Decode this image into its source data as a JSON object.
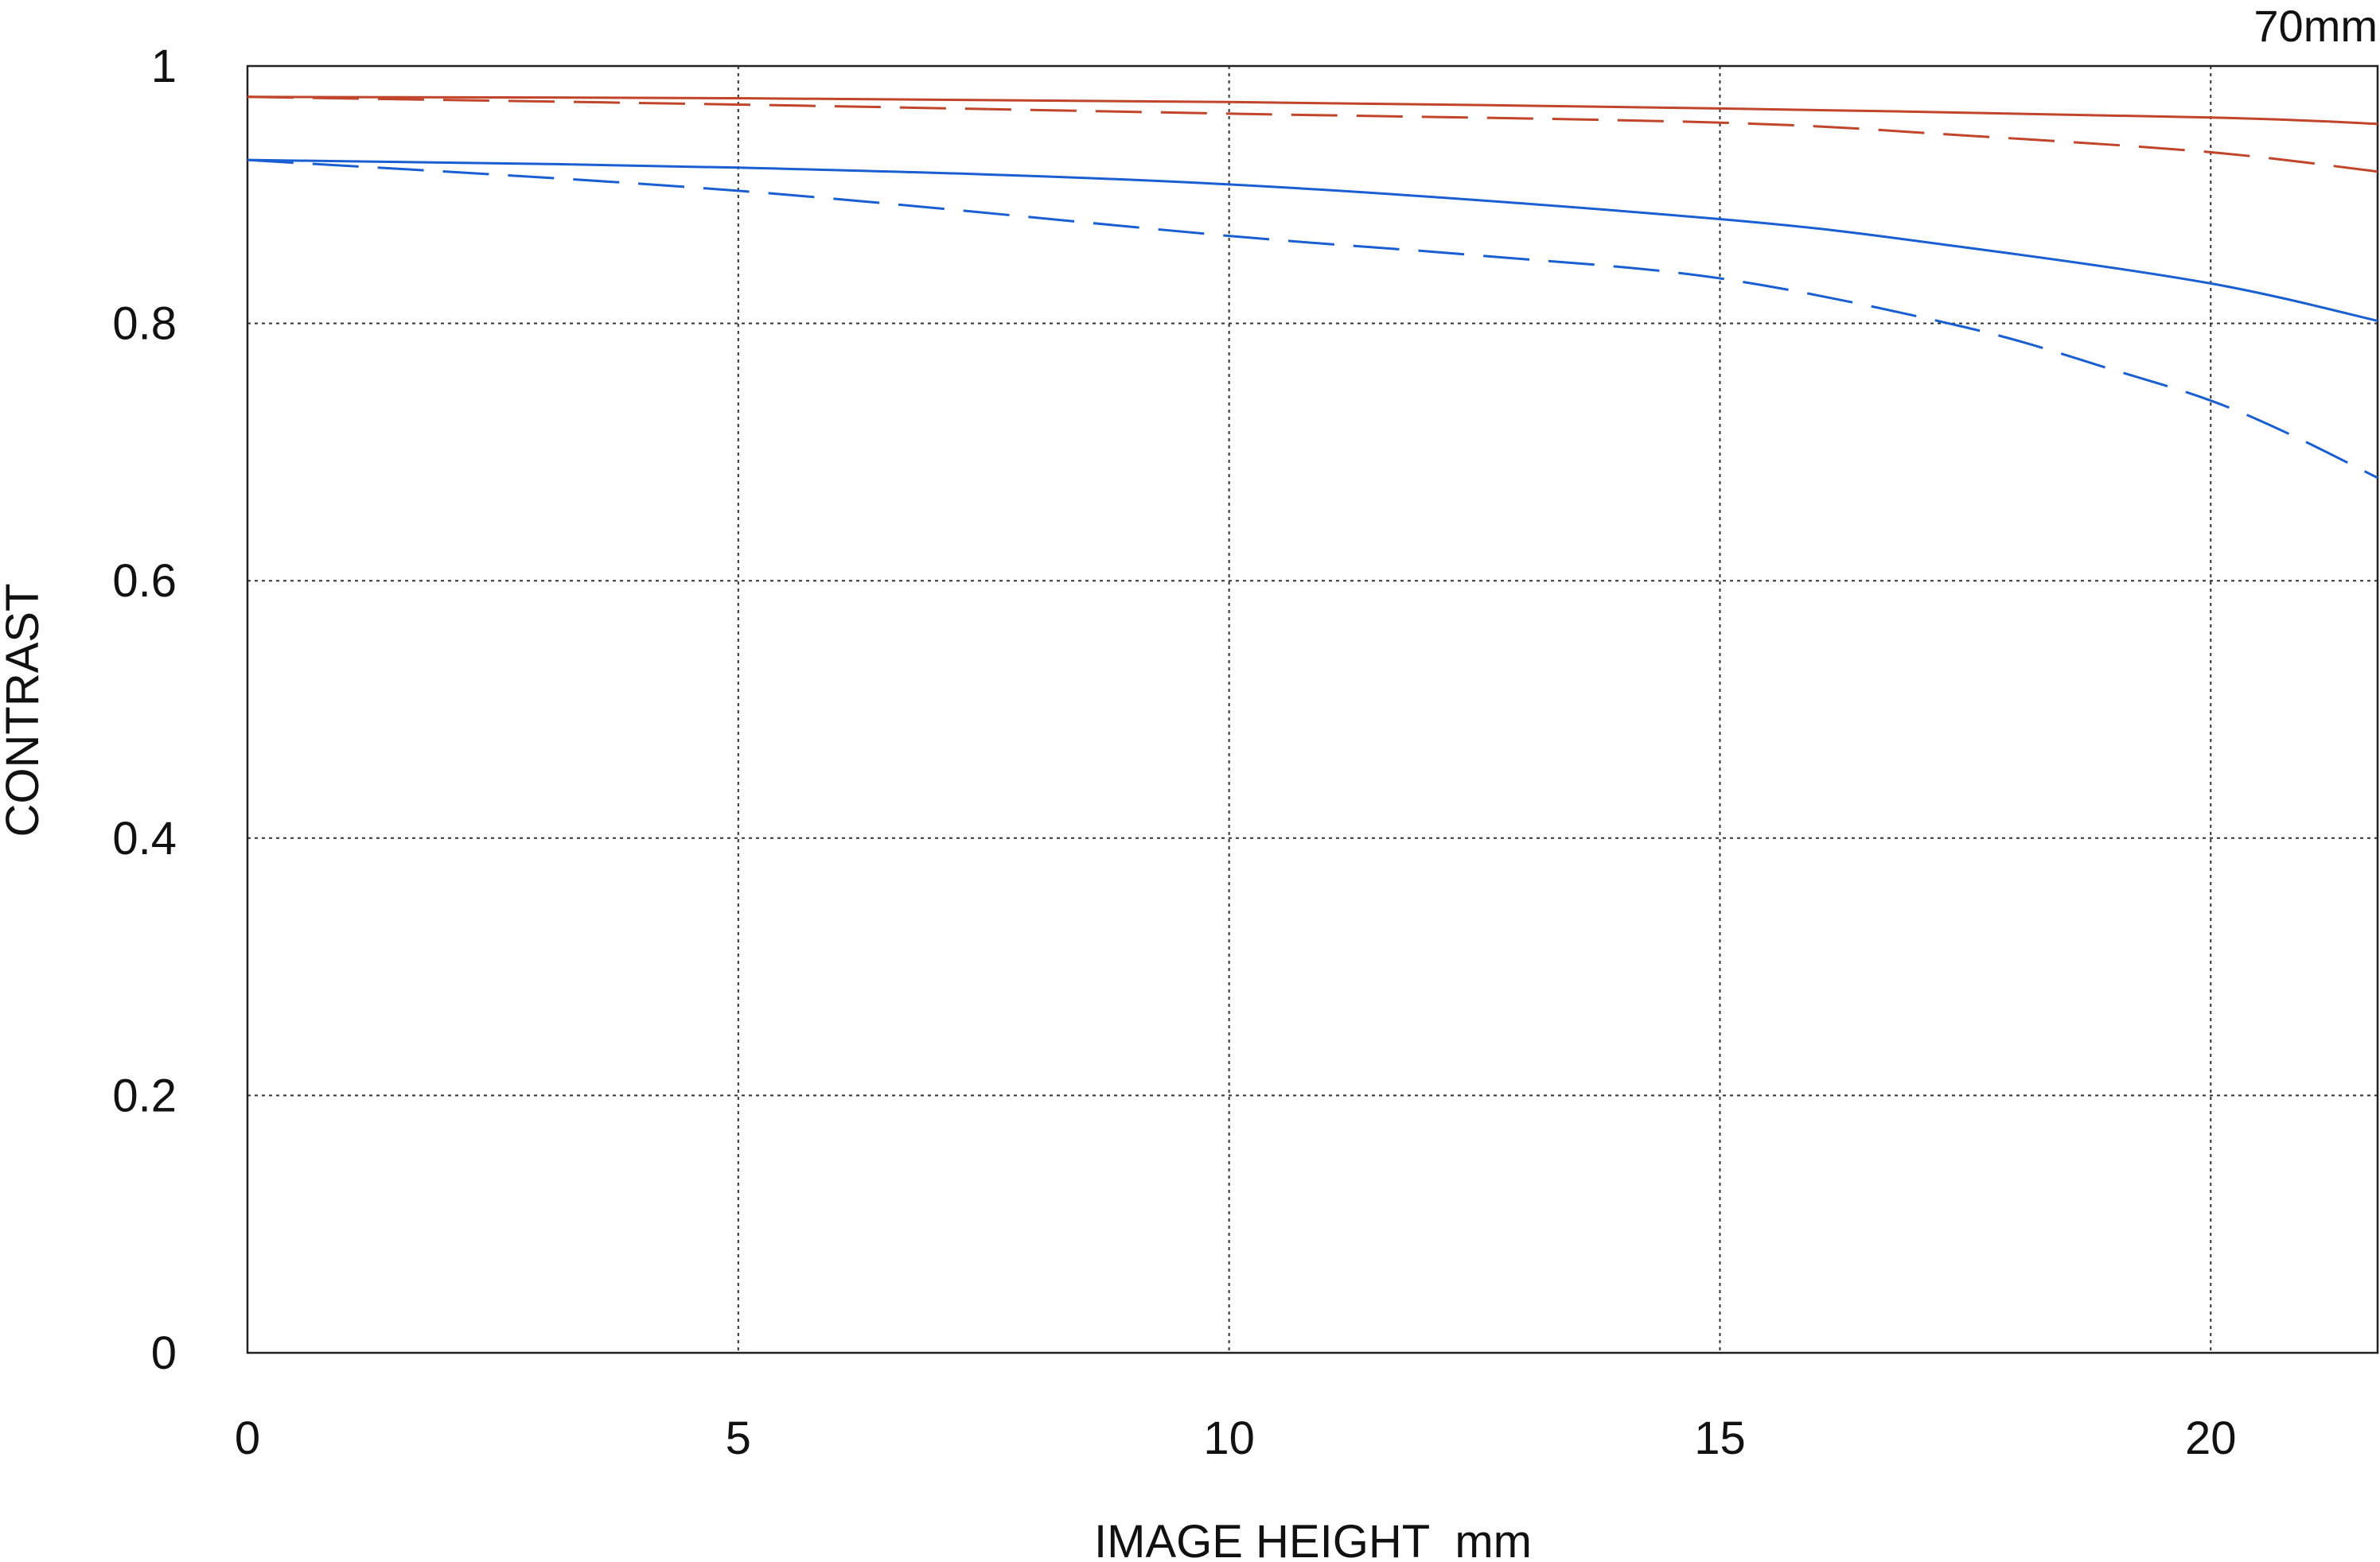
{
  "chart_data": {
    "type": "line",
    "title": "70mm",
    "xlabel": "IMAGE HEIGHT  mm",
    "ylabel": "CONTRAST",
    "xlim": [
      0,
      21.7
    ],
    "ylim": [
      0,
      1
    ],
    "x_ticks": [
      0,
      5,
      10,
      15,
      20
    ],
    "x_tick_labels": [
      "0",
      "5",
      "10",
      "15",
      "20"
    ],
    "y_ticks": [
      0,
      0.2,
      0.4,
      0.6,
      0.8,
      1
    ],
    "y_tick_labels": [
      "0",
      "0.2",
      "0.4",
      "0.6",
      "0.8",
      "1"
    ],
    "grid": true,
    "grid_style": "dotted",
    "legend": "none",
    "series": [
      {
        "color": "#c0452a",
        "dash": "solid",
        "x": [
          0,
          5,
          10,
          15,
          20,
          21.7
        ],
        "y": [
          0.976,
          0.975,
          0.972,
          0.967,
          0.96,
          0.955
        ]
      },
      {
        "color": "#c0452a",
        "dash": "dashed",
        "x": [
          0,
          5,
          10,
          15,
          17.5,
          20,
          21.7
        ],
        "y": [
          0.976,
          0.97,
          0.963,
          0.956,
          0.946,
          0.933,
          0.918
        ]
      },
      {
        "color": "#1a5fd1",
        "dash": "solid",
        "x": [
          0,
          5,
          10,
          15,
          17.5,
          20,
          21.7
        ],
        "y": [
          0.927,
          0.921,
          0.908,
          0.881,
          0.859,
          0.831,
          0.802
        ]
      },
      {
        "color": "#1a5fd1",
        "dash": "dashed",
        "x": [
          0,
          5,
          10,
          12.5,
          15,
          17.5,
          19,
          20,
          20.8,
          21.7
        ],
        "y": [
          0.927,
          0.903,
          0.868,
          0.853,
          0.835,
          0.797,
          0.764,
          0.74,
          0.714,
          0.68
        ]
      }
    ]
  }
}
